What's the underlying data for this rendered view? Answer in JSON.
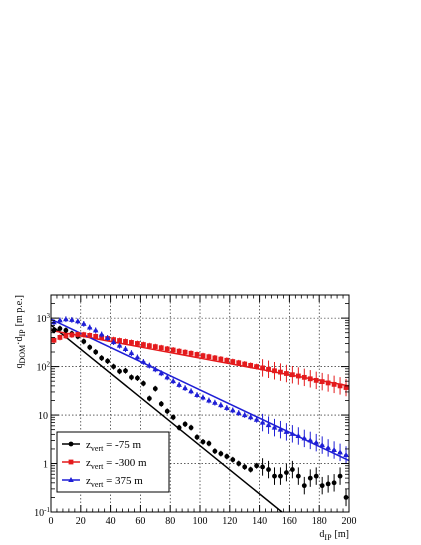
{
  "chart_data": {
    "type": "scatter",
    "title": "",
    "xlabel": {
      "main": "d",
      "sub": "IP",
      "unit": "[m]"
    },
    "ylabel": {
      "q": "q",
      "q_sub": "DOM",
      "mid": "·d",
      "d_sub": "IP",
      "unit": "[m p.e.]"
    },
    "xlim": [
      0,
      200
    ],
    "ylim": [
      0.1,
      3000
    ],
    "yscale": "log",
    "grid": true,
    "legend_position": "bottom-left",
    "x_ticks": [
      "0",
      "20",
      "40",
      "60",
      "80",
      "100",
      "120",
      "140",
      "160",
      "180",
      "200"
    ],
    "y_ticks": [
      {
        "value": 0.1,
        "base": "10",
        "exp": "-1"
      },
      {
        "value": 1,
        "base": "1",
        "exp": ""
      },
      {
        "value": 10,
        "base": "10",
        "exp": ""
      },
      {
        "value": 100,
        "base": "10",
        "exp": "2"
      },
      {
        "value": 1000,
        "base": "10",
        "exp": "3"
      }
    ],
    "series": [
      {
        "name": {
          "z": "z",
          "sub": "vert",
          "rest": " = -75 m"
        },
        "color": "#000000",
        "marker": "circle",
        "x": [
          2,
          6,
          10,
          14,
          18,
          22,
          26,
          30,
          34,
          38,
          42,
          46,
          50,
          54,
          58,
          62,
          66,
          70,
          74,
          78,
          82,
          86,
          90,
          94,
          98,
          102,
          106,
          110,
          114,
          118,
          122,
          126,
          130,
          134,
          138,
          142,
          146,
          150,
          154,
          158,
          162,
          166,
          170,
          174,
          178,
          182,
          186,
          190,
          194,
          198
        ],
        "y": [
          560,
          610,
          560,
          480,
          420,
          330,
          250,
          200,
          150,
          130,
          100,
          80,
          82,
          60,
          58,
          45,
          22,
          35,
          17,
          12,
          9,
          5.5,
          6.5,
          5.5,
          3.5,
          2.8,
          2.6,
          1.8,
          1.6,
          1.4,
          1.2,
          1.0,
          0.85,
          0.75,
          0.9,
          0.85,
          0.75,
          0.55,
          0.55,
          0.65,
          0.75,
          0.55,
          0.35,
          0.5,
          0.55,
          0.35,
          0.38,
          0.4,
          0.55,
          0.2
        ],
        "fit": {
          "x": [
            0,
            155
          ],
          "y": [
            720,
            0.1
          ]
        }
      },
      {
        "name": {
          "z": "z",
          "sub": "vert",
          "rest": " = -300 m"
        },
        "color": "#e41a1c",
        "marker": "square",
        "x": [
          2,
          6,
          10,
          14,
          18,
          22,
          26,
          30,
          34,
          38,
          42,
          46,
          50,
          54,
          58,
          62,
          66,
          70,
          74,
          78,
          82,
          86,
          90,
          94,
          98,
          102,
          106,
          110,
          114,
          118,
          122,
          126,
          130,
          134,
          138,
          142,
          146,
          150,
          154,
          158,
          162,
          166,
          170,
          174,
          178,
          182,
          186,
          190,
          194,
          198
        ],
        "y": [
          350,
          400,
          430,
          450,
          460,
          455,
          440,
          420,
          400,
          380,
          360,
          345,
          330,
          315,
          300,
          285,
          270,
          258,
          245,
          232,
          220,
          208,
          198,
          188,
          178,
          168,
          160,
          151,
          143,
          135,
          127,
          120,
          113,
          106,
          100,
          94,
          88,
          82,
          77,
          72,
          68,
          64,
          60,
          56,
          52,
          49,
          46,
          43,
          40,
          37
        ],
        "fit": {
          "x": [
            0,
            200
          ],
          "y": [
            560,
            40
          ]
        }
      },
      {
        "name": {
          "z": "z",
          "sub": "vert",
          "rest": " = 375 m"
        },
        "color": "#1f1fd6",
        "marker": "triangle",
        "x": [
          2,
          6,
          10,
          14,
          18,
          22,
          26,
          30,
          34,
          38,
          42,
          46,
          50,
          54,
          58,
          62,
          66,
          70,
          74,
          78,
          82,
          86,
          90,
          94,
          98,
          102,
          106,
          110,
          114,
          118,
          122,
          126,
          130,
          134,
          138,
          142,
          146,
          150,
          154,
          158,
          162,
          166,
          170,
          174,
          178,
          182,
          186,
          190,
          194,
          198
        ],
        "y": [
          820,
          900,
          950,
          920,
          860,
          760,
          640,
          560,
          460,
          390,
          320,
          270,
          230,
          190,
          155,
          125,
          105,
          88,
          73,
          60,
          50,
          42,
          36,
          31,
          26,
          23,
          20,
          18,
          16,
          14,
          12.5,
          11,
          10,
          9,
          8,
          7,
          6.2,
          5.5,
          5,
          4.5,
          4.1,
          3.7,
          3.3,
          3,
          2.7,
          2.4,
          2.1,
          1.9,
          1.7,
          1.5
        ],
        "fit": {
          "x": [
            0,
            200
          ],
          "y": [
            950,
            1.15
          ]
        }
      }
    ]
  }
}
